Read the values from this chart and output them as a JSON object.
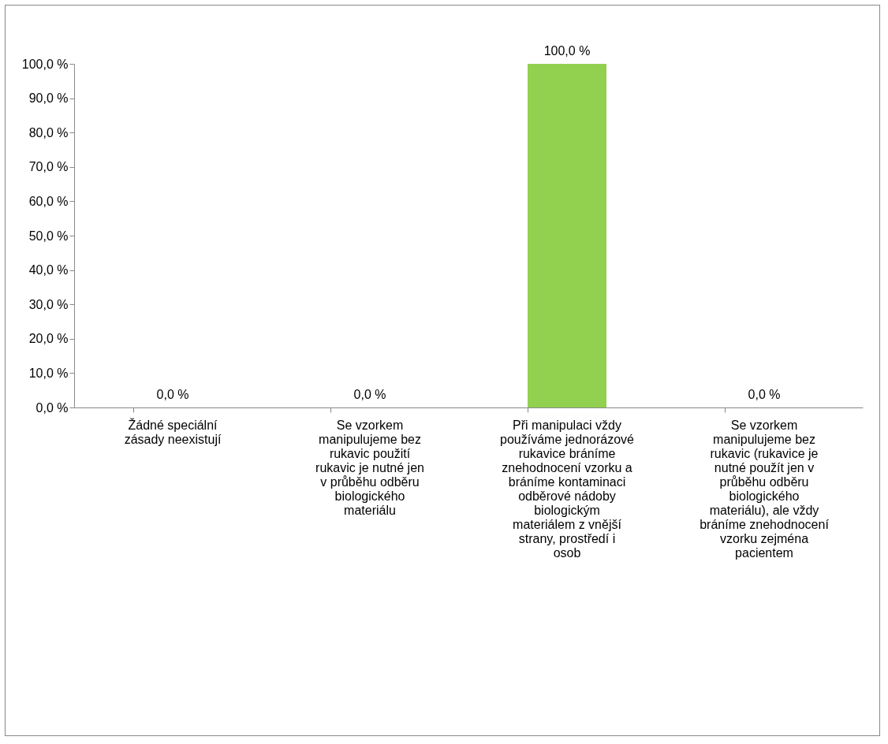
{
  "chart_data": {
    "type": "bar",
    "categories": [
      "Žádné speciální zásady neexistují",
      "Se vzorkem manipulujeme bez rukavic použití rukavic je nutné jen v průběhu odběru biologického materiálu",
      "Při manipulaci vždy používáme jednorázové rukavice bráníme znehodnocení vzorku a bráníme kontaminaci odběrové nádoby biologickým materiálem z vnější strany, prostředí i osob",
      "Se vzorkem manipulujeme bez rukavic (rukavice je nutné použít jen v průběhu odběru biologického materiálu), ale vždy bráníme znehodnocení vzorku zejména pacientem"
    ],
    "values": [
      0,
      0,
      100,
      0
    ],
    "value_labels": [
      "0,0 %",
      "0,0 %",
      "100,0 %",
      "0,0 %"
    ],
    "color": "#92d050",
    "ylim": [
      0,
      100
    ],
    "yticks": [
      {
        "value": 0,
        "label": "0,0 %"
      },
      {
        "value": 10,
        "label": "10,0 %"
      },
      {
        "value": 20,
        "label": "20,0 %"
      },
      {
        "value": 30,
        "label": "30,0 %"
      },
      {
        "value": 40,
        "label": "40,0 %"
      },
      {
        "value": 50,
        "label": "50,0 %"
      },
      {
        "value": 60,
        "label": "60,0 %"
      },
      {
        "value": 70,
        "label": "70,0 %"
      },
      {
        "value": 80,
        "label": "80,0 %"
      },
      {
        "value": 90,
        "label": "90,0 %"
      },
      {
        "value": 100,
        "label": "100,0 %"
      }
    ],
    "grid": false
  }
}
